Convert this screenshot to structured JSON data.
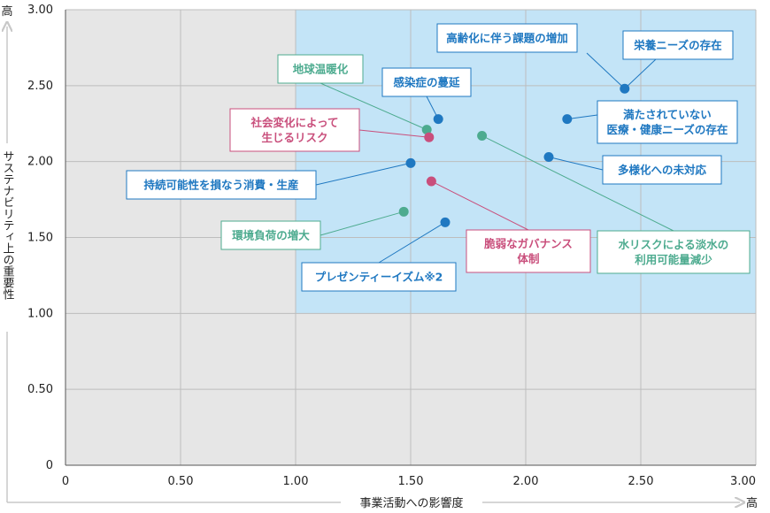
{
  "chart_data": {
    "type": "scatter",
    "xlabel": "事業活動への影響度",
    "ylabel": "サステナビリティ上の重要性",
    "x_high_label": "高",
    "y_high_label": "高",
    "xlim": [
      0,
      3
    ],
    "ylim": [
      0,
      3
    ],
    "x_ticks": [
      "0",
      "0.50",
      "1.00",
      "1.50",
      "2.00",
      "2.50",
      "3.00"
    ],
    "y_ticks": [
      "0",
      "0.50",
      "1.00",
      "1.50",
      "2.00",
      "2.50",
      "3.00"
    ],
    "highlight_region": {
      "x_from": 1.0,
      "y_from": 1.0
    },
    "grid": true,
    "colors": {
      "blue": "#1f78c1",
      "green": "#4dab8f",
      "pink": "#c94f7c",
      "highlight": "#c3e4f7",
      "background": "#e6e6e6"
    },
    "points": [
      {
        "lines": [
          "高齢化に伴う課題の増加"
        ],
        "x": 2.43,
        "y": 2.48,
        "color": "blue"
      },
      {
        "lines": [
          "栄養ニーズの存在"
        ],
        "x": 2.43,
        "y": 2.48,
        "color": "blue"
      },
      {
        "lines": [
          "満たされていない",
          "医療・健康ニーズの存在"
        ],
        "x": 2.18,
        "y": 2.28,
        "color": "blue"
      },
      {
        "lines": [
          "多様化への未対応"
        ],
        "x": 2.1,
        "y": 2.03,
        "color": "blue"
      },
      {
        "lines": [
          "感染症の蔓延"
        ],
        "x": 1.62,
        "y": 2.28,
        "color": "blue"
      },
      {
        "lines": [
          "持続可能性を損なう消費・生産"
        ],
        "x": 1.5,
        "y": 1.99,
        "color": "blue"
      },
      {
        "lines": [
          "プレゼンティーイズム※2"
        ],
        "x": 1.65,
        "y": 1.6,
        "color": "blue"
      },
      {
        "lines": [
          "地球温暖化"
        ],
        "x": 1.57,
        "y": 2.21,
        "color": "green"
      },
      {
        "lines": [
          "環境負荷の増大"
        ],
        "x": 1.47,
        "y": 1.67,
        "color": "green"
      },
      {
        "lines": [
          "水リスクによる淡水の",
          "利用可能量減少"
        ],
        "x": 1.81,
        "y": 2.17,
        "color": "green"
      },
      {
        "lines": [
          "社会変化によって",
          "生じるリスク"
        ],
        "x": 1.58,
        "y": 2.16,
        "color": "pink"
      },
      {
        "lines": [
          "脆弱なガバナンス",
          "体制"
        ],
        "x": 1.59,
        "y": 1.87,
        "color": "pink"
      }
    ]
  }
}
